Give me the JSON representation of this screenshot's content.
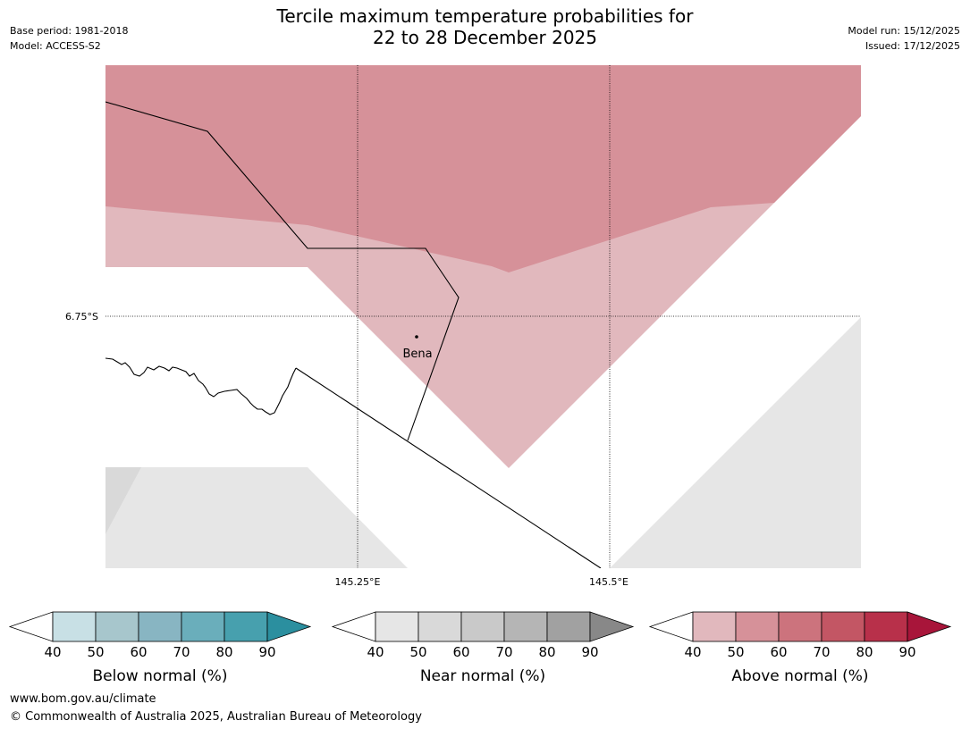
{
  "header": {
    "title_line1": "Tercile maximum temperature probabilities for",
    "title_line2": "22 to 28 December 2025",
    "base_period": "Base period: 1981-2018",
    "model": "Model: ACCESS-S2",
    "model_run": "Model run: 15/12/2025",
    "issued": "Issued: 17/12/2025"
  },
  "map": {
    "lat_label": "6.75°S",
    "lon_labels": [
      "145.25°E",
      "145.5°E"
    ],
    "place": "Bena",
    "colors": {
      "above_60": "#d69199",
      "above_50": "#e1b8bd",
      "near_40": "#e6e6e6",
      "near_50": "#d9d9d9"
    }
  },
  "legends": [
    {
      "label": "Below normal (%)",
      "ticks": [
        "40",
        "50",
        "60",
        "70",
        "80",
        "90"
      ],
      "colors": [
        "#c8e0e5",
        "#a7c6cc",
        "#88b5c2",
        "#6aaebb",
        "#47a0ae",
        "#2b8f9f"
      ]
    },
    {
      "label": "Near normal (%)",
      "ticks": [
        "40",
        "50",
        "60",
        "70",
        "80",
        "90"
      ],
      "colors": [
        "#e6e6e6",
        "#d9d9d9",
        "#c9c9c9",
        "#b5b5b5",
        "#a1a1a1",
        "#888888"
      ]
    },
    {
      "label": "Above normal (%)",
      "ticks": [
        "40",
        "50",
        "60",
        "70",
        "80",
        "90"
      ],
      "colors": [
        "#e1b8bd",
        "#d69199",
        "#cc737d",
        "#c35664",
        "#b8304a",
        "#a8153a"
      ]
    }
  ],
  "footer": {
    "url": "www.bom.gov.au/climate",
    "copyright": "© Commonwealth of Australia 2025, Australian Bureau of Meteorology"
  }
}
